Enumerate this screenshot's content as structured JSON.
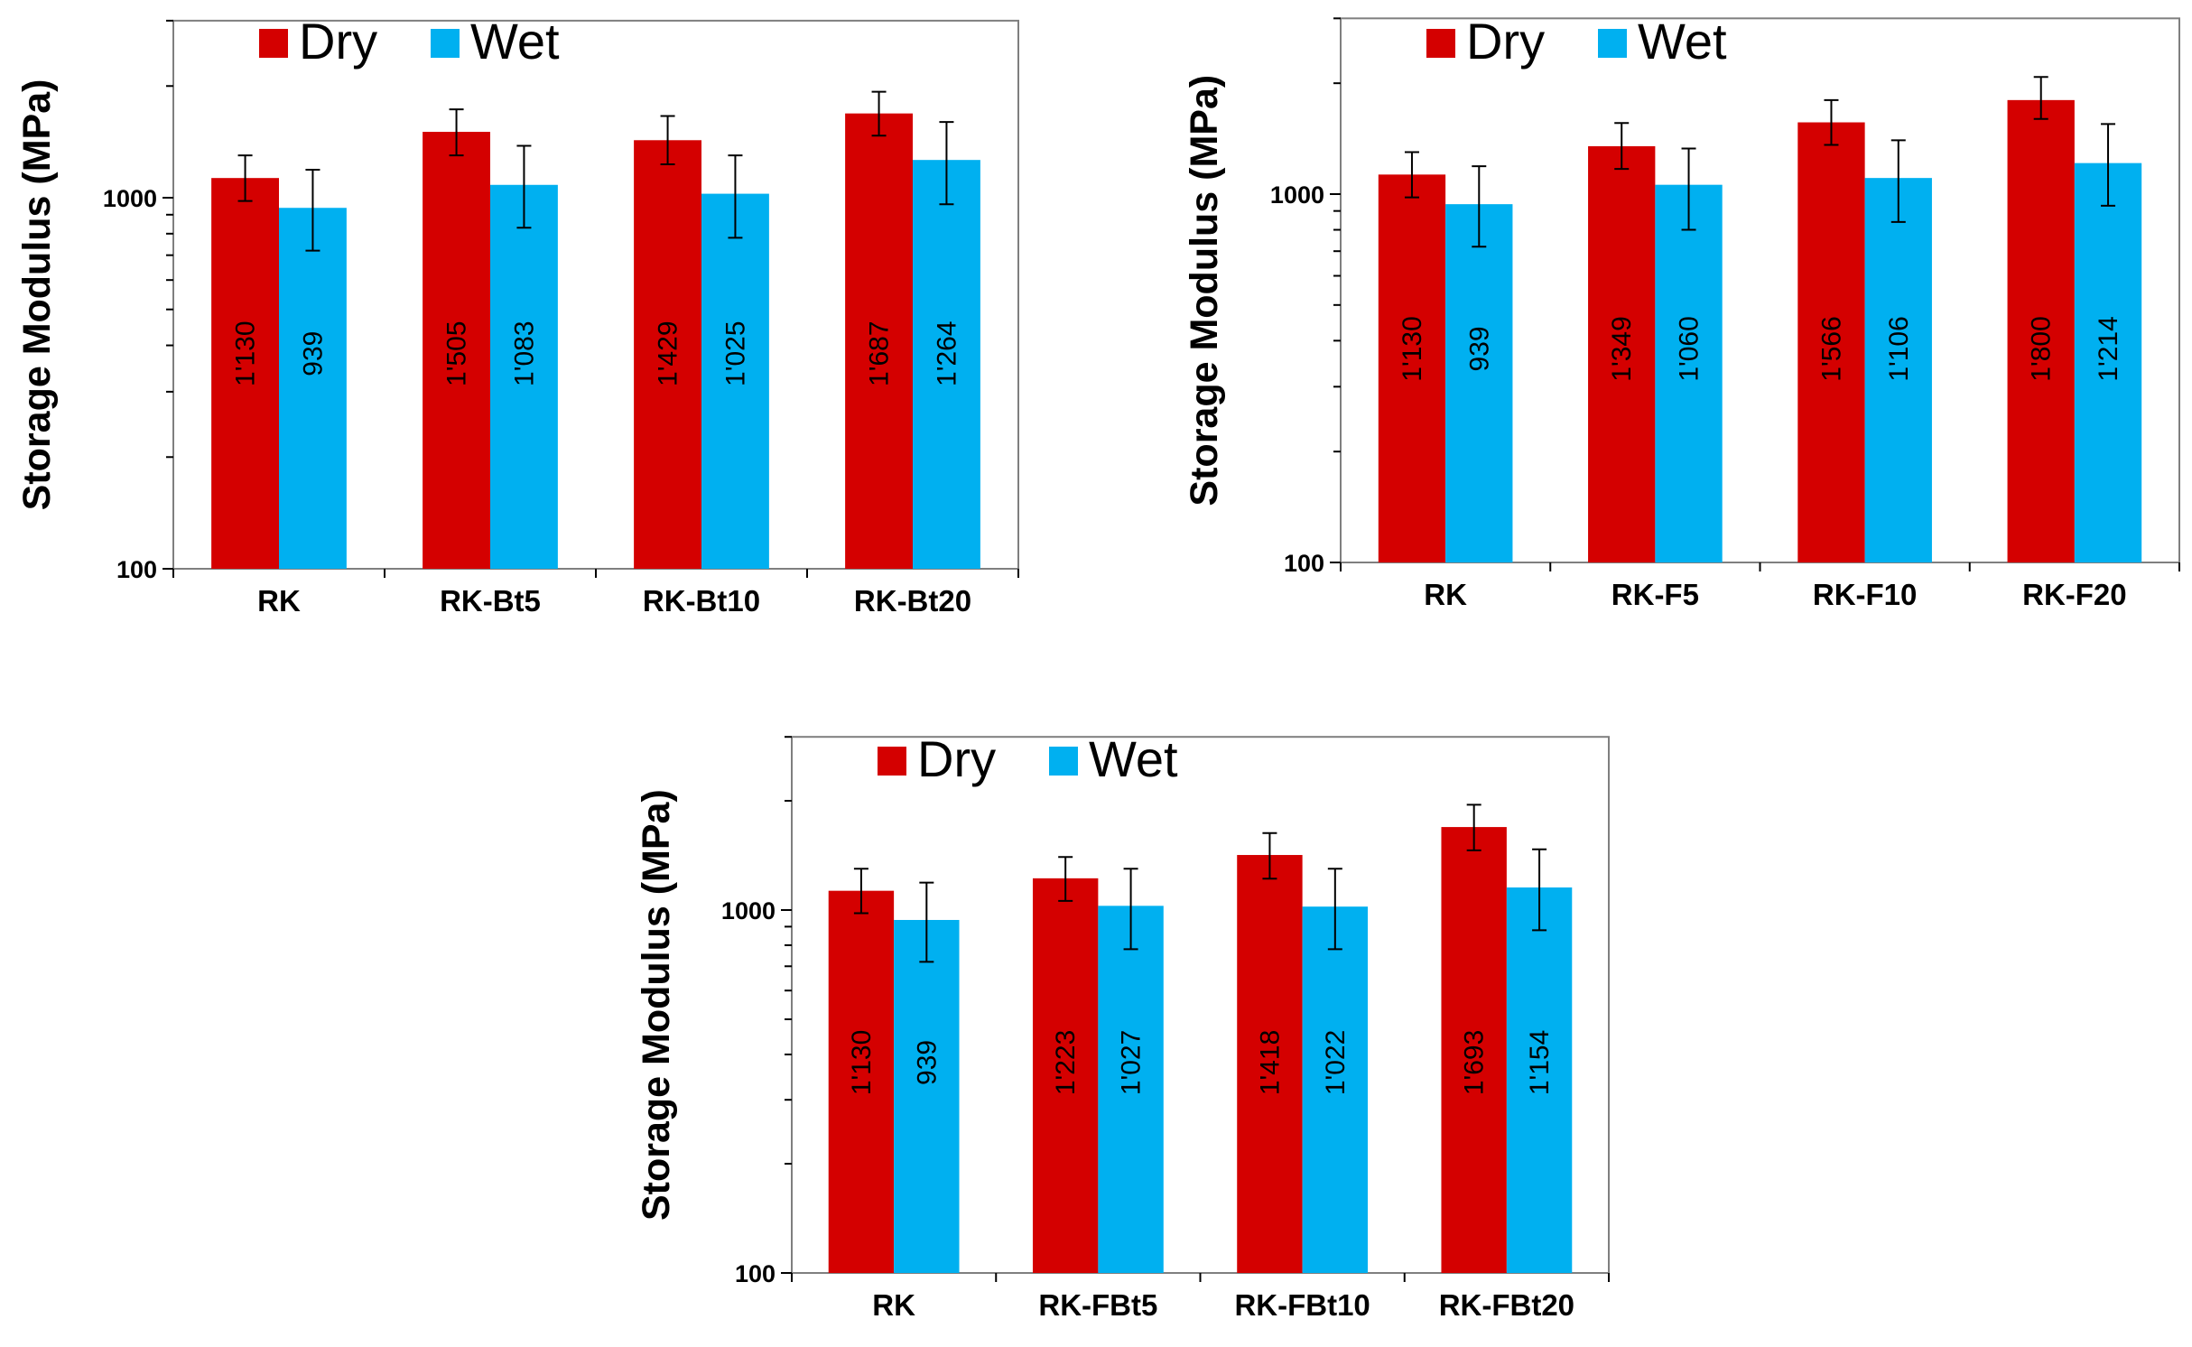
{
  "chart_data": [
    {
      "type": "bar",
      "scale": "log",
      "ylabel": "Storage Modulus (MPa)",
      "ylim": [
        100,
        3000
      ],
      "yticks": [
        "100",
        "1000"
      ],
      "legend_position": "top-left",
      "categories": [
        "RK",
        "RK-Bt5",
        "RK-Bt10",
        "RK-Bt20"
      ],
      "series": [
        {
          "name": "Dry",
          "color": "#d40000",
          "values": [
            1130,
            1505,
            1429,
            1687
          ],
          "labels": [
            "1'130",
            "1'505",
            "1'429",
            "1'687"
          ],
          "err_low": [
            980,
            1300,
            1230,
            1470
          ],
          "err_high": [
            1300,
            1730,
            1660,
            1930
          ]
        },
        {
          "name": "Wet",
          "color": "#00b0f0",
          "values": [
            939,
            1083,
            1025,
            1264
          ],
          "labels": [
            "939",
            "1'083",
            "1'025",
            "1'264"
          ],
          "err_low": [
            720,
            830,
            780,
            960
          ],
          "err_high": [
            1190,
            1380,
            1300,
            1600
          ]
        }
      ]
    },
    {
      "type": "bar",
      "scale": "log",
      "ylabel": "Storage Modulus (MPa)",
      "ylim": [
        100,
        3000
      ],
      "yticks": [
        "100",
        "1000"
      ],
      "legend_position": "top-left",
      "categories": [
        "RK",
        "RK-F5",
        "RK-F10",
        "RK-F20"
      ],
      "series": [
        {
          "name": "Dry",
          "color": "#d40000",
          "values": [
            1130,
            1349,
            1566,
            1800
          ],
          "labels": [
            "1'130",
            "1'349",
            "1'566",
            "1'800"
          ],
          "err_low": [
            980,
            1170,
            1360,
            1600
          ],
          "err_high": [
            1300,
            1560,
            1800,
            2080
          ]
        },
        {
          "name": "Wet",
          "color": "#00b0f0",
          "values": [
            939,
            1060,
            1106,
            1214
          ],
          "labels": [
            "939",
            "1'060",
            "1'106",
            "1'214"
          ],
          "err_low": [
            720,
            800,
            840,
            930
          ],
          "err_high": [
            1190,
            1330,
            1400,
            1550
          ]
        }
      ]
    },
    {
      "type": "bar",
      "scale": "log",
      "ylabel": "Storage Modulus (MPa)",
      "ylim": [
        100,
        3000
      ],
      "yticks": [
        "100",
        "1000"
      ],
      "legend_position": "top-left",
      "categories": [
        "RK",
        "RK-FBt5",
        "RK-FBt10",
        "RK-FBt20"
      ],
      "series": [
        {
          "name": "Dry",
          "color": "#d40000",
          "values": [
            1130,
            1223,
            1418,
            1693
          ],
          "labels": [
            "1'130",
            "1'223",
            "1'418",
            "1'693"
          ],
          "err_low": [
            980,
            1060,
            1220,
            1460
          ],
          "err_high": [
            1300,
            1400,
            1630,
            1950
          ]
        },
        {
          "name": "Wet",
          "color": "#00b0f0",
          "values": [
            939,
            1027,
            1022,
            1154
          ],
          "labels": [
            "939",
            "1'027",
            "1'022",
            "1'154"
          ],
          "err_low": [
            720,
            780,
            780,
            880
          ],
          "err_high": [
            1190,
            1300,
            1300,
            1470
          ]
        }
      ]
    }
  ]
}
